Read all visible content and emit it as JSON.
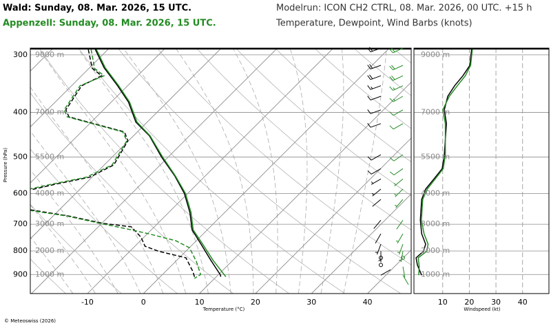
{
  "header": {
    "station_1": "Wald: Sunday, 08. Mar. 2026, 15 UTC.",
    "station_2": "Appenzell: Sunday, 08. Mar. 2026, 15 UTC.",
    "model_run": "Modelrun: ICON CH2 CTRL, 08. Mar. 2026, 00 UTC. +15 h",
    "subtitle": "Temperature, Dewpoint, Wind Barbs (knots)"
  },
  "footer": "© Meteoswiss (2026)",
  "chart_data": [
    {
      "type": "skewt",
      "xlabel": "Temperature (°C)",
      "ylabel": "Pressure (hPa)",
      "xlim": [
        -20.2,
        47.8
      ],
      "ylim": [
        990,
        290
      ],
      "log_y": true,
      "xticks": [
        -10,
        0,
        10,
        20,
        30,
        40
      ],
      "yticks": [
        300,
        400,
        500,
        600,
        700,
        800,
        900
      ],
      "height_labels": [
        "9000 m",
        "7000 m",
        "5500 m",
        "4000 m",
        "3000 m",
        "2000 m",
        "1000 m"
      ],
      "series": [
        {
          "color": "#000000",
          "dash": false,
          "y": [
            290,
            320,
            350,
            380,
            420,
            450,
            500,
            550,
            600,
            660,
            720,
            770,
            840,
            900,
            910
          ],
          "values": [
            -52.6,
            -47.4,
            -41.8,
            -36.9,
            -32.0,
            -27.1,
            -21.2,
            -15.4,
            -10.6,
            -6.2,
            -2.7,
            1.2,
            6.2,
            10.3,
            10.8
          ]
        },
        {
          "color": "#000000",
          "dash": true,
          "y": [
            292,
            321,
            333,
            350,
            395,
            409,
            441,
            461,
            520,
            553,
            573,
            589,
            620,
            651,
            672,
            697,
            709,
            747,
            781,
            801,
            828,
            887,
            918
          ],
          "values": [
            -53.5,
            -49.4,
            -46.4,
            -48.2,
            -46.7,
            -44.9,
            -32.3,
            -30.1,
            -28.3,
            -30.4,
            -35.3,
            -38.6,
            -45,
            -35.2,
            -27.1,
            -19.7,
            -14.1,
            -10.5,
            -8.2,
            -4.9,
            1.2,
            4.9,
            6.5
          ]
        },
        {
          "color": "#228b22",
          "dash": false,
          "y": [
            290,
            320,
            350,
            380,
            420,
            450,
            500,
            550,
            600,
            660,
            720,
            770,
            840,
            900,
            910
          ],
          "values": [
            -52.4,
            -47.2,
            -41.6,
            -36.7,
            -31.8,
            -27.0,
            -21.0,
            -15.3,
            -10.4,
            -6.0,
            -2.5,
            1.5,
            6.6,
            11.0,
            11.7
          ]
        },
        {
          "color": "#228b22",
          "dash": true,
          "y": [
            292,
            321,
            333,
            350,
            395,
            409,
            441,
            461,
            520,
            553,
            573,
            589,
            620,
            651,
            672,
            697,
            720,
            734,
            760,
            787,
            843,
            900,
            918
          ],
          "values": [
            -53.0,
            -49.0,
            -46.0,
            -48.5,
            -47.0,
            -45.2,
            -32.6,
            -30.3,
            -28.6,
            -31.0,
            -36.0,
            -39.5,
            -46,
            -36,
            -27.5,
            -20.2,
            -13.5,
            -9.8,
            -3.7,
            0,
            3.7,
            6.8,
            6.4
          ]
        }
      ]
    },
    {
      "type": "line",
      "xlabel": "Windspeed (kt)",
      "xlim": [
        -0.8,
        49.9
      ],
      "ylim": [
        990,
        290
      ],
      "log_y": true,
      "xticks": [
        10,
        20,
        30,
        40
      ],
      "yticks": [
        300,
        400,
        500,
        600,
        700,
        800,
        900
      ],
      "height_labels": [
        "9000 m",
        "7000 m",
        "5500 m",
        "4000 m",
        "3000 m",
        "2000 m",
        "1000 m"
      ],
      "series": [
        {
          "color": "#000000",
          "y": [
            903,
            858,
            828,
            801,
            773,
            734,
            686,
            618,
            587,
            558,
            530,
            494,
            423,
            395,
            369,
            350,
            333,
            316,
            290
          ],
          "values": [
            2.1,
            0.5,
            0,
            2.8,
            3.6,
            2.1,
            1.6,
            2.1,
            3.6,
            6.7,
            9.8,
            10.6,
            11.4,
            10.6,
            11.9,
            14.5,
            17.6,
            20.2,
            20.9
          ],
          "direction": [
            60,
            90,
            90,
            180,
            200,
            210,
            220,
            230,
            230,
            240,
            240,
            240,
            250,
            250,
            250,
            250,
            250,
            250,
            250
          ]
        },
        {
          "color": "#228b22",
          "y": [
            903,
            865,
            828,
            801,
            773,
            734,
            686,
            618,
            587,
            558,
            530,
            494,
            423,
            395,
            369,
            350,
            333,
            316,
            290
          ],
          "values": [
            1.0,
            1.2,
            0.8,
            4.0,
            4.5,
            3.0,
            2.0,
            2.5,
            4.2,
            7.2,
            10.2,
            11.0,
            11.0,
            10.0,
            12.5,
            15.5,
            18.5,
            20.5,
            21.2
          ],
          "direction": [
            150,
            170,
            180,
            190,
            200,
            210,
            215,
            220,
            225,
            230,
            235,
            235,
            240,
            240,
            240,
            245,
            245,
            245,
            245
          ]
        }
      ]
    }
  ]
}
